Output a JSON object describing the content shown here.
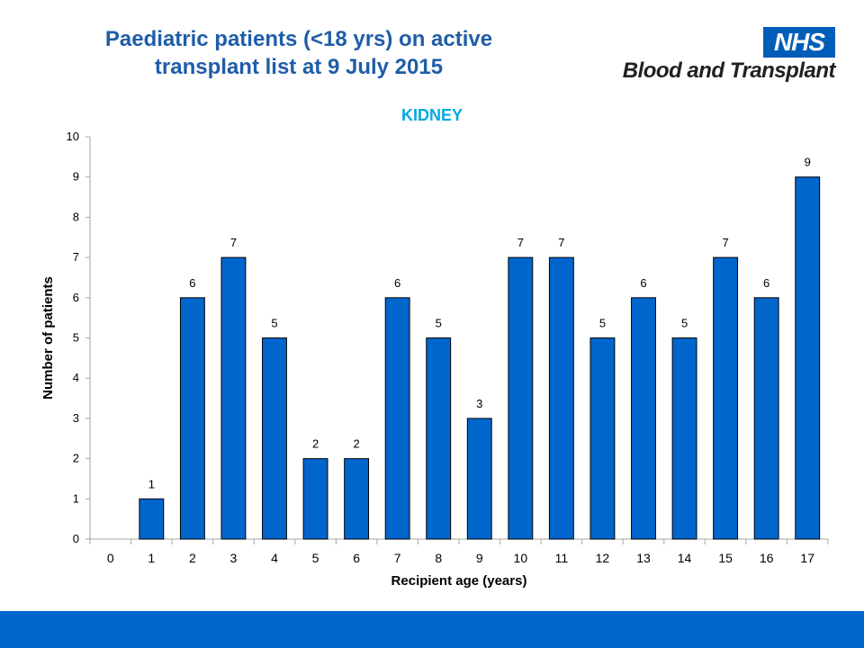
{
  "slide": {
    "title_line1": "Paediatric patients (<18 yrs) on active",
    "title_line2": "transplant list at 9 July 2015"
  },
  "logo": {
    "nhs": "NHS",
    "org": "Blood and Transplant"
  },
  "colors": {
    "title": "#1F5DA8",
    "chart_title": "#00A9E0",
    "bar": "#0066CC",
    "footer": "#0066CC",
    "nhs_blue": "#005EB8"
  },
  "chart_data": {
    "type": "bar",
    "title": "KIDNEY",
    "xlabel": "Recipient age (years)",
    "ylabel": "Number of patients",
    "categories": [
      "0",
      "1",
      "2",
      "3",
      "4",
      "5",
      "6",
      "7",
      "8",
      "9",
      "10",
      "11",
      "12",
      "13",
      "14",
      "15",
      "16",
      "17"
    ],
    "values": [
      0,
      1,
      6,
      7,
      5,
      2,
      2,
      6,
      5,
      3,
      7,
      7,
      5,
      6,
      5,
      7,
      6,
      9
    ],
    "data_labels": [
      "",
      "1",
      "6",
      "7",
      "5",
      "2",
      "2",
      "6",
      "5",
      "3",
      "7",
      "7",
      "5",
      "6",
      "5",
      "7",
      "6",
      "9"
    ],
    "ylim": [
      0,
      10
    ],
    "yticks": [
      0,
      1,
      2,
      3,
      4,
      5,
      6,
      7,
      8,
      9,
      10
    ],
    "grid": false,
    "legend": "none"
  }
}
